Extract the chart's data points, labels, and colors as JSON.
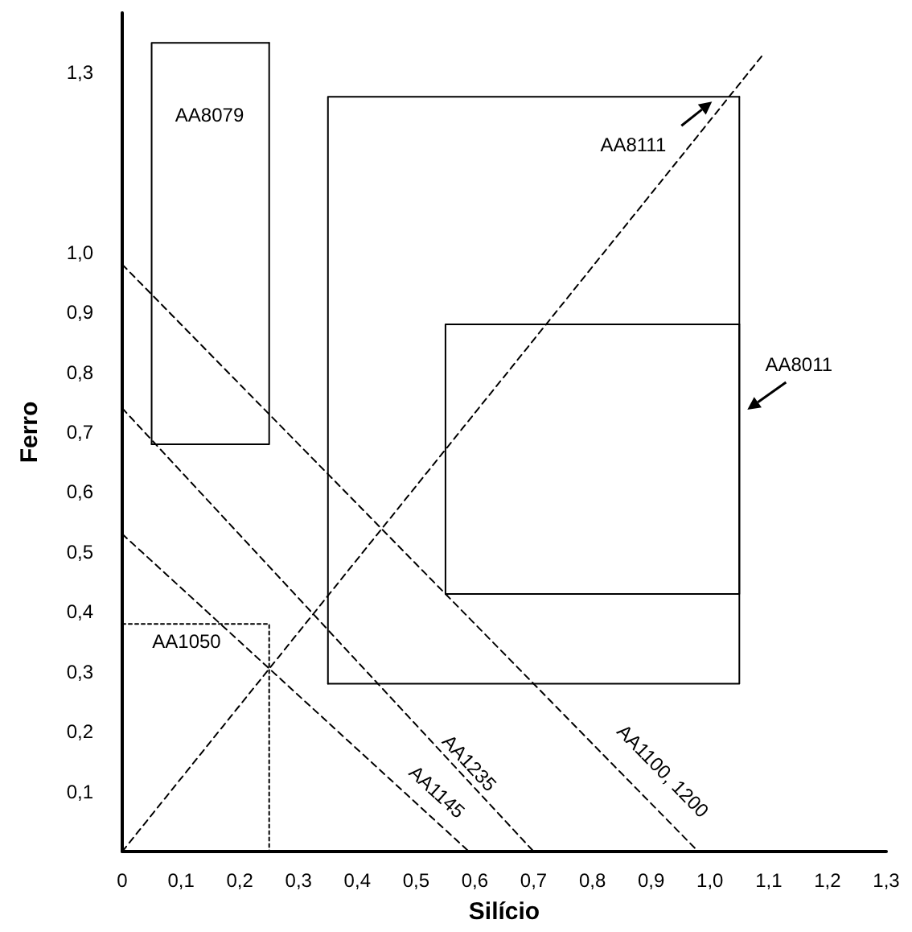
{
  "chart_data": {
    "type": "line",
    "xlabel": "Silício",
    "ylabel": "Ferro",
    "marker": "none",
    "xlim": [
      0,
      1.3
    ],
    "ylim": [
      0,
      1.4
    ],
    "xticks": [
      {
        "value": 0,
        "label": "0"
      },
      {
        "value": 0.1,
        "label": "0,1"
      },
      {
        "value": 0.2,
        "label": "0,2"
      },
      {
        "value": 0.3,
        "label": "0,3"
      },
      {
        "value": 0.4,
        "label": "0,4"
      },
      {
        "value": 0.5,
        "label": "0,5"
      },
      {
        "value": 0.6,
        "label": "0,6"
      },
      {
        "value": 0.7,
        "label": "0,7"
      },
      {
        "value": 0.8,
        "label": "0,8"
      },
      {
        "value": 0.9,
        "label": "0,9"
      },
      {
        "value": 1.0,
        "label": "1,0"
      },
      {
        "value": 1.1,
        "label": "1,1"
      },
      {
        "value": 1.2,
        "label": "1,2"
      },
      {
        "value": 1.3,
        "label": "1,3"
      }
    ],
    "yticks": [
      {
        "value": 0.1,
        "label": "0,1"
      },
      {
        "value": 0.2,
        "label": "0,2"
      },
      {
        "value": 0.3,
        "label": "0,3"
      },
      {
        "value": 0.4,
        "label": "0,4"
      },
      {
        "value": 0.5,
        "label": "0,5"
      },
      {
        "value": 0.6,
        "label": "0,6"
      },
      {
        "value": 0.7,
        "label": "0,7"
      },
      {
        "value": 0.8,
        "label": "0,8"
      },
      {
        "value": 0.9,
        "label": "0,9"
      },
      {
        "value": 1.0,
        "label": "1,0"
      },
      {
        "value": 1.3,
        "label": "1,3"
      }
    ],
    "series": [
      {
        "name": "AA8079",
        "x": [
          0.05,
          0.05,
          0.25
        ],
        "values": [
          0.68,
          1.35,
          1.35
        ],
        "color": "#000000",
        "line_style": "solid"
      },
      {
        "x": [
          0.05,
          0.25,
          0.25
        ],
        "values": [
          0.68,
          0.68,
          1.35
        ],
        "color": "#000000",
        "line_style": "solid"
      },
      {
        "name": "AA8111",
        "x": [
          0.35,
          0.35,
          1.05
        ],
        "values": [
          0.28,
          1.26,
          1.26
        ],
        "color": "#000000",
        "line_style": "solid"
      },
      {
        "x": [
          0.35,
          1.05,
          1.05
        ],
        "values": [
          0.28,
          0.28,
          1.26
        ],
        "color": "#000000",
        "line_style": "solid"
      },
      {
        "name": "AA8011",
        "x": [
          0.55,
          0.55,
          1.05
        ],
        "values": [
          0.43,
          0.88,
          0.88
        ],
        "color": "#000000",
        "line_style": "solid"
      },
      {
        "x": [
          0.55,
          1.05,
          1.05
        ],
        "values": [
          0.43,
          0.43,
          0.88
        ],
        "color": "#000000",
        "line_style": "solid"
      },
      {
        "name": "AA1050",
        "x": [
          0,
          0.25,
          0.25
        ],
        "values": [
          0.38,
          0.38,
          0
        ],
        "color": "#000000",
        "line_style": "dotted"
      },
      {
        "x": [
          0,
          1.09
        ],
        "values": [
          0,
          1.33
        ],
        "color": "#000000",
        "line_style": "dashed"
      },
      {
        "name": "AA1100, 1200",
        "x": [
          0,
          0.98
        ],
        "values": [
          0.98,
          0
        ],
        "color": "#000000",
        "line_style": "dashed"
      },
      {
        "name": "AA1235",
        "x": [
          0,
          0.7
        ],
        "values": [
          0.74,
          0
        ],
        "color": "#000000",
        "line_style": "dashed"
      },
      {
        "name": "AA1145",
        "x": [
          0,
          0.59
        ],
        "values": [
          0.53,
          0
        ],
        "color": "#000000",
        "line_style": "dashed"
      }
    ]
  }
}
